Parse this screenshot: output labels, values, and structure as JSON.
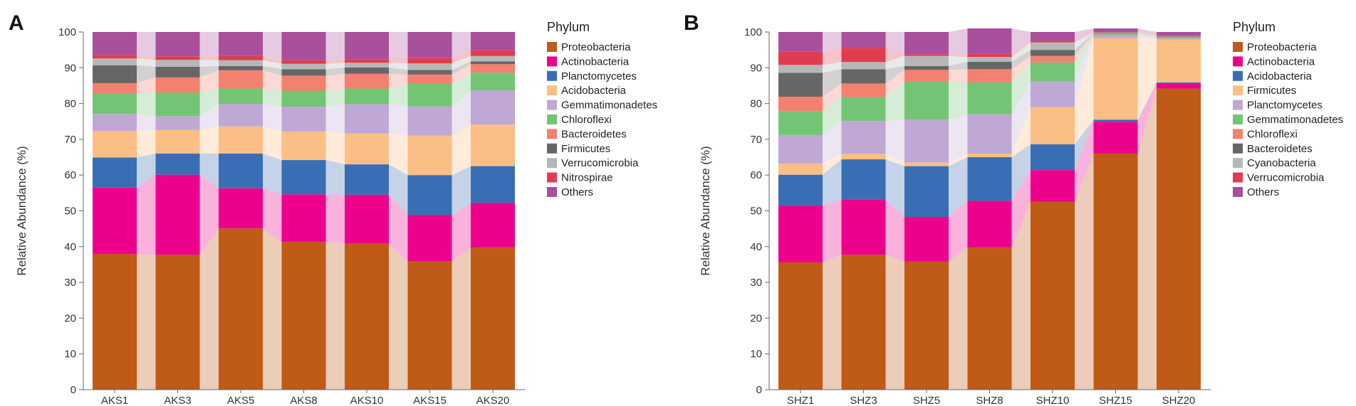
{
  "chart_data": [
    {
      "type": "bar",
      "stacked": true,
      "panel_label": "A",
      "title": "",
      "xlabel": "",
      "ylabel": "Relative Abundance (%)",
      "ylim": [
        0,
        100
      ],
      "yticks": [
        "0",
        "10",
        "20",
        "30",
        "40",
        "50",
        "60",
        "70",
        "80",
        "90",
        "100"
      ],
      "categories": [
        "AKS1",
        "AKS3",
        "AKS5",
        "AKS8",
        "AKS10",
        "AKS15",
        "AKS20"
      ],
      "legend_title": "Phylum",
      "legend_position": "right",
      "series": [
        {
          "name": "Proteobacteria",
          "color": "#c05a17",
          "values": [
            37.9,
            37.7,
            45.1,
            41.3,
            40.8,
            35.9,
            39.7
          ]
        },
        {
          "name": "Actinobacteria",
          "color": "#ec008c",
          "values": [
            18.6,
            22.4,
            11.2,
            13.3,
            13.7,
            12.9,
            12.5
          ]
        },
        {
          "name": "Planctomycetes",
          "color": "#3a6eb4",
          "values": [
            8.4,
            5.9,
            9.7,
            9.6,
            8.5,
            11.2,
            10.3
          ]
        },
        {
          "name": "Acidobacteria",
          "color": "#fbbe84",
          "values": [
            7.4,
            6.6,
            7.6,
            8.0,
            8.6,
            11.0,
            11.6
          ]
        },
        {
          "name": "Gemmatimonadetes",
          "color": "#bfa8d3",
          "values": [
            4.8,
            3.9,
            6.3,
            6.9,
            8.2,
            8.2,
            9.6
          ]
        },
        {
          "name": "Chloroflexi",
          "color": "#74c476",
          "values": [
            5.8,
            6.6,
            4.3,
            4.5,
            4.4,
            6.3,
            4.9
          ]
        },
        {
          "name": "Bacteroidetes",
          "color": "#f4806f",
          "values": [
            2.8,
            4.2,
            5.1,
            4.2,
            4.1,
            2.6,
            2.4
          ]
        },
        {
          "name": "Firmicutes",
          "color": "#666666",
          "values": [
            5.0,
            3.0,
            1.2,
            1.8,
            1.8,
            1.3,
            0.8
          ]
        },
        {
          "name": "Verrucomicrobia",
          "color": "#b7b7b7",
          "values": [
            1.9,
            1.9,
            1.6,
            1.5,
            1.3,
            1.8,
            1.5
          ]
        },
        {
          "name": "Nitrospirae",
          "color": "#df3d4f",
          "values": [
            1.0,
            1.0,
            1.2,
            1.0,
            1.0,
            1.6,
            1.7
          ]
        },
        {
          "name": "Others",
          "color": "#a94f9c",
          "values": [
            6.4,
            6.8,
            6.7,
            7.9,
            7.6,
            7.2,
            5.0
          ]
        }
      ]
    },
    {
      "type": "bar",
      "stacked": true,
      "panel_label": "B",
      "title": "",
      "xlabel": "",
      "ylabel": "Relative Abundance (%)",
      "ylim": [
        0,
        100
      ],
      "yticks": [
        "0",
        "10",
        "20",
        "30",
        "40",
        "50",
        "60",
        "70",
        "80",
        "90",
        "100"
      ],
      "categories": [
        "SHZ1",
        "SHZ3",
        "SHZ5",
        "SHZ8",
        "SHZ10",
        "SHZ15",
        "SHZ20"
      ],
      "legend_title": "Phylum",
      "legend_position": "right",
      "series": [
        {
          "name": "Proteobacteria",
          "color": "#c05a17",
          "values": [
            35.6,
            37.7,
            35.8,
            39.7,
            52.5,
            66.1,
            84.2
          ]
        },
        {
          "name": "Actinobacteria",
          "color": "#ec008c",
          "values": [
            15.9,
            15.4,
            12.5,
            13.1,
            8.9,
            8.8,
            1.4
          ]
        },
        {
          "name": "Acidobacteria",
          "color": "#3a6eb4",
          "values": [
            8.6,
            11.3,
            14.2,
            12.2,
            7.2,
            0.6,
            0.3
          ]
        },
        {
          "name": "Firmicutes",
          "color": "#fbbe84",
          "values": [
            3.1,
            1.6,
            1.0,
            1.0,
            10.4,
            22.8,
            12.0
          ]
        },
        {
          "name": "Planctomycetes",
          "color": "#bfa8d3",
          "values": [
            8.0,
            9.1,
            12.0,
            11.0,
            7.2,
            0.9,
            0.3
          ]
        },
        {
          "name": "Gemmatimonadetes",
          "color": "#74c476",
          "values": [
            6.7,
            6.8,
            10.7,
            8.9,
            5.3,
            0.3,
            0.4
          ]
        },
        {
          "name": "Chloroflexi",
          "color": "#f4806f",
          "values": [
            4.0,
            3.7,
            3.2,
            3.7,
            1.8,
            0.1,
            0.1
          ]
        },
        {
          "name": "Bacteroidetes",
          "color": "#666666",
          "values": [
            6.7,
            4.0,
            1.1,
            2.1,
            1.7,
            0.1,
            0.1
          ]
        },
        {
          "name": "Cyanobacteria",
          "color": "#b7b7b7",
          "values": [
            2.2,
            2.0,
            2.8,
            1.3,
            2.1,
            0.2,
            0.1
          ]
        },
        {
          "name": "Verrucomicrobia",
          "color": "#df3d4f",
          "values": [
            3.7,
            4.0,
            0.5,
            0.9,
            0.4,
            0.2,
            0.1
          ]
        },
        {
          "name": "Others",
          "color": "#a94f9c",
          "values": [
            5.5,
            4.4,
            6.2,
            7.1,
            2.5,
            0.9,
            1.0
          ]
        }
      ]
    }
  ]
}
